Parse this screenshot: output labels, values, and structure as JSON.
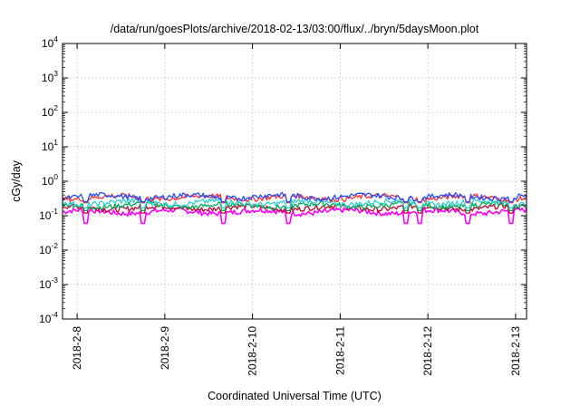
{
  "chart_data": {
    "type": "line",
    "title": "/data/run/goesPlots/archive/2018-02-13/03:00/flux/../bryn/5daysMoon.plot",
    "ylabel": "cGy/day",
    "xlabel": "Coordinated Universal Time (UTC)",
    "yscale": "log",
    "ylim": [
      0.0001,
      10000
    ],
    "y_ticks": [
      {
        "base": "10",
        "exp": "-4",
        "value": 0.0001
      },
      {
        "base": "10",
        "exp": "-3",
        "value": 0.001
      },
      {
        "base": "10",
        "exp": "-2",
        "value": 0.01
      },
      {
        "base": "10",
        "exp": "-1",
        "value": 0.1
      },
      {
        "base": "10",
        "exp": "0",
        "value": 1
      },
      {
        "base": "10",
        "exp": "1",
        "value": 10
      },
      {
        "base": "10",
        "exp": "2",
        "value": 100
      },
      {
        "base": "10",
        "exp": "3",
        "value": 1000
      },
      {
        "base": "10",
        "exp": "4",
        "value": 10000
      }
    ],
    "xlim": [
      "2018-02-07T20:00",
      "2018-02-13T03:00"
    ],
    "x_ticks": [
      "2018-2-8",
      "2018-2-9",
      "2018-2-10",
      "2018-2-11",
      "2018-2-12",
      "2018-2-13"
    ],
    "grid": true,
    "series": [
      {
        "color": "#ff00ff",
        "base": 0.13,
        "dips": 0.06
      },
      {
        "color": "#c0002e",
        "base": 0.17
      },
      {
        "color": "#00aa55",
        "base": 0.2
      },
      {
        "color": "#30d0d0",
        "base": 0.24
      },
      {
        "color": "#ff3030",
        "base": 0.34
      },
      {
        "color": "#2050ff",
        "base": 0.36
      }
    ]
  }
}
